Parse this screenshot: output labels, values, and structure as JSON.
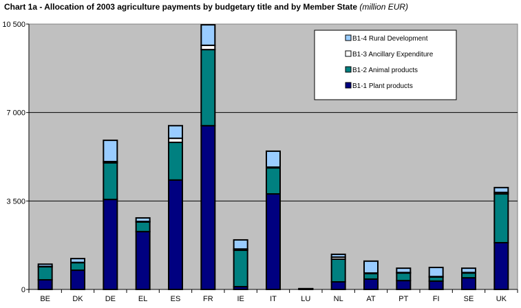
{
  "chart_data": {
    "type": "bar",
    "stacked": true,
    "title": "Chart 1a - Allocation of 2003 agriculture payments by budgetary title and by Member State",
    "title_unit": "(million EUR)",
    "xlabel": "",
    "ylabel": "",
    "ylim": [
      0,
      10500
    ],
    "yticks": [
      0,
      3500,
      7000,
      10500
    ],
    "ytick_labels": [
      "0",
      "3 500",
      "7 000",
      "10 500"
    ],
    "grid": true,
    "legend_position": "top-right",
    "categories": [
      "BE",
      "DK",
      "DE",
      "EL",
      "ES",
      "FR",
      "IE",
      "IT",
      "LU",
      "NL",
      "AT",
      "PT",
      "FI",
      "SE",
      "UK"
    ],
    "series": [
      {
        "name": "B1-1 Plant products",
        "color": "#000080",
        "values": [
          380,
          760,
          3560,
          2290,
          4330,
          6480,
          110,
          3780,
          15,
          300,
          410,
          350,
          330,
          460,
          1850
        ]
      },
      {
        "name": "B1-2 Animal products",
        "color": "#008080",
        "values": [
          520,
          300,
          1450,
          380,
          1490,
          3010,
          1440,
          1030,
          10,
          900,
          220,
          300,
          160,
          190,
          1930
        ]
      },
      {
        "name": "B1-3 Ancillary Expenditure",
        "color": "#ffffff",
        "values": [
          10,
          10,
          50,
          20,
          160,
          170,
          50,
          30,
          2,
          80,
          20,
          20,
          20,
          20,
          60
        ]
      },
      {
        "name": "B1-4 Rural Development",
        "color": "#99ccff",
        "values": [
          90,
          150,
          840,
          140,
          500,
          810,
          360,
          630,
          5,
          110,
          470,
          170,
          360,
          170,
          190
        ]
      }
    ],
    "legend_order": [
      "B1-4 Rural Development",
      "B1-3 Ancillary Expenditure",
      "B1-2 Animal products",
      "B1-1 Plant products"
    ]
  }
}
